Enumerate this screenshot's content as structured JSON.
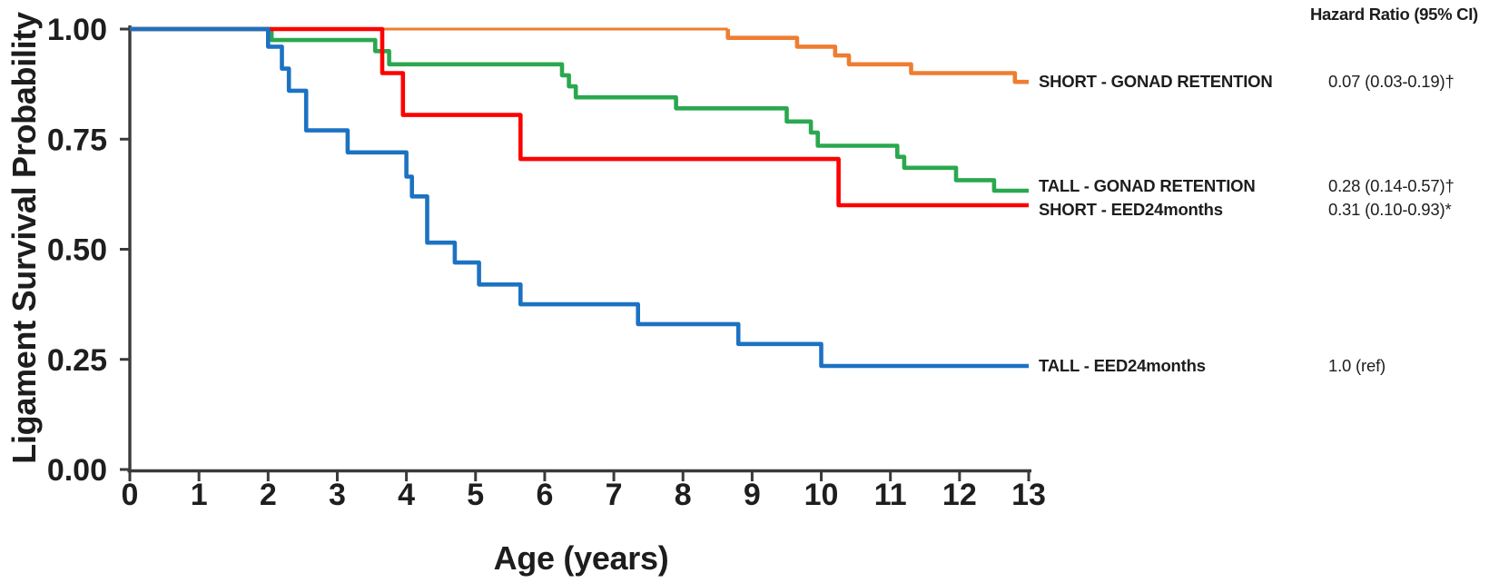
{
  "figure": {
    "background": "#ffffff",
    "axis_color": "#3a3a3a",
    "tick_text_color": "#1e1e1e"
  },
  "chart_data": {
    "type": "line",
    "subtype": "kaplan-meier-step-survival",
    "title": "",
    "xlabel": "Age (years)",
    "ylabel": "Ligament Survival Probability",
    "xlim": [
      0,
      13
    ],
    "ylim": [
      0.0,
      1.0
    ],
    "grid": "off",
    "legend_position": "right",
    "legend_header": "Hazard Ratio (95% CI)",
    "x_ticks": [
      "0",
      "1",
      "2",
      "3",
      "4",
      "5",
      "6",
      "7",
      "8",
      "9",
      "10",
      "11",
      "12",
      "13"
    ],
    "x_tick_values": [
      0,
      1,
      2,
      3,
      4,
      5,
      6,
      7,
      8,
      9,
      10,
      11,
      12,
      13
    ],
    "y_ticks": [
      "1.00",
      "0.75",
      "0.50",
      "0.25",
      "0.00"
    ],
    "y_tick_values": [
      1.0,
      0.75,
      0.5,
      0.25,
      0.0
    ],
    "series": [
      {
        "name": "SHORT - GONAD RETENTION",
        "hazard_ratio": "0.07 (0.03-0.19)†",
        "color": "#EE7D31",
        "x_end": 13,
        "steps": [
          [
            0,
            1.0
          ],
          [
            8.65,
            0.98
          ],
          [
            9.65,
            0.96
          ],
          [
            10.2,
            0.94
          ],
          [
            10.4,
            0.92
          ],
          [
            11.3,
            0.9
          ],
          [
            12.8,
            0.88
          ]
        ]
      },
      {
        "name": "TALL - GONAD RETENTION",
        "hazard_ratio": "0.28 (0.14-0.57)†",
        "color": "#2AA84F",
        "x_end": 13,
        "steps": [
          [
            0,
            1.0
          ],
          [
            2.05,
            0.975
          ],
          [
            3.55,
            0.95
          ],
          [
            3.75,
            0.92
          ],
          [
            6.25,
            0.895
          ],
          [
            6.35,
            0.87
          ],
          [
            6.45,
            0.845
          ],
          [
            7.9,
            0.82
          ],
          [
            9.5,
            0.79
          ],
          [
            9.85,
            0.765
          ],
          [
            9.95,
            0.735
          ],
          [
            11.1,
            0.71
          ],
          [
            11.2,
            0.685
          ],
          [
            11.95,
            0.657
          ],
          [
            12.5,
            0.633
          ]
        ]
      },
      {
        "name": "SHORT - EED24months",
        "hazard_ratio": "0.31 (0.10-0.93)*",
        "color": "#FD0000",
        "x_end": 13,
        "steps": [
          [
            0,
            1.0
          ],
          [
            3.65,
            0.9
          ],
          [
            3.95,
            0.805
          ],
          [
            5.65,
            0.705
          ],
          [
            10.25,
            0.6
          ]
        ]
      },
      {
        "name": "TALL - EED24months",
        "hazard_ratio": "1.0 (ref)",
        "color": "#1C72C2",
        "x_end": 13,
        "steps": [
          [
            0,
            1.0
          ],
          [
            2.0,
            0.96
          ],
          [
            2.2,
            0.91
          ],
          [
            2.3,
            0.86
          ],
          [
            2.55,
            0.77
          ],
          [
            3.15,
            0.72
          ],
          [
            4.0,
            0.665
          ],
          [
            4.08,
            0.62
          ],
          [
            4.3,
            0.515
          ],
          [
            4.7,
            0.47
          ],
          [
            5.05,
            0.42
          ],
          [
            5.65,
            0.375
          ],
          [
            7.35,
            0.33
          ],
          [
            8.8,
            0.285
          ],
          [
            10.0,
            0.235
          ]
        ]
      }
    ]
  }
}
